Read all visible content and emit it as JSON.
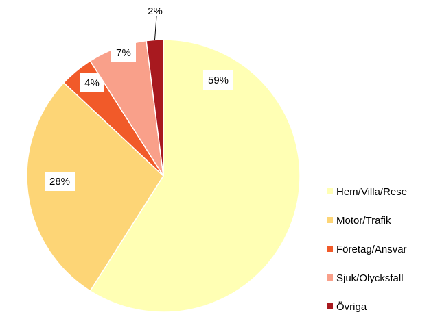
{
  "chart_data": {
    "type": "pie",
    "title": "",
    "start": "top",
    "direction": "clockwise",
    "legend_position": "right",
    "slices": [
      {
        "name": "Hem/Villa/Rese",
        "value": 59,
        "label": "59%",
        "color": "#FFFFB4"
      },
      {
        "name": "Motor/Trafik",
        "value": 28,
        "label": "28%",
        "color": "#FDD576"
      },
      {
        "name": "Företag/Ansvar",
        "value": 4,
        "label": "4%",
        "color": "#F15A29"
      },
      {
        "name": "Sjuk/Olycksfall",
        "value": 7,
        "label": "7%",
        "color": "#F9A08A"
      },
      {
        "name": "Övriga",
        "value": 2,
        "label": "2%",
        "color": "#A8191F"
      }
    ]
  }
}
